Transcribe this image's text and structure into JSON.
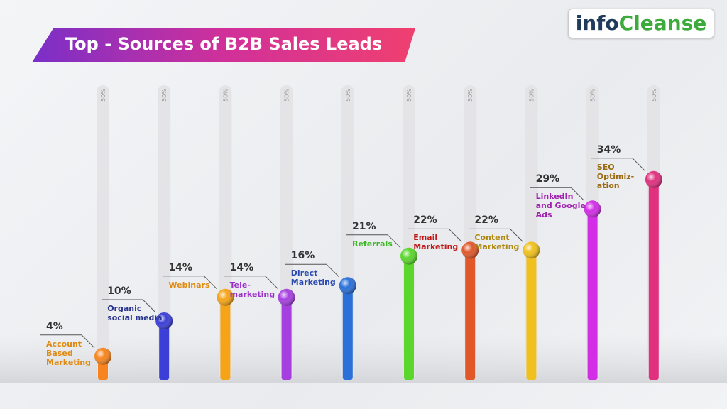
{
  "logo": [
    "info",
    "Cleanse"
  ],
  "chart_data": {
    "type": "bar",
    "title": "Top - Sources of B2B Sales Leads",
    "categories": [
      "Account Based Marketing",
      "Organic social media",
      "Webinars",
      "Tele-marketing",
      "Direct Marketing",
      "Referrals",
      "Email Marketing",
      "Content Marketing",
      "LinkedIn and Google Ads",
      "SEO Optimiz-ation"
    ],
    "values": [
      4,
      10,
      14,
      14,
      16,
      21,
      22,
      22,
      29,
      34
    ],
    "value_labels": [
      "4%",
      "10%",
      "14%",
      "14%",
      "16%",
      "21%",
      "22%",
      "22%",
      "29%",
      "34%"
    ],
    "colors": [
      "#f7841e",
      "#3b3fd8",
      "#f5a418",
      "#a63fe0",
      "#2a70d8",
      "#5ad62c",
      "#e0582a",
      "#f0c01e",
      "#d22ee6",
      "#e0307e"
    ],
    "label_colors": [
      "#e08a10",
      "#2a3590",
      "#e08a10",
      "#9a30c8",
      "#2a4ab0",
      "#3bb820",
      "#c01a1a",
      "#b08a10",
      "#a020b0",
      "#9a6a10"
    ],
    "ylim": [
      0,
      50
    ],
    "yticks": [
      {
        "value": 50,
        "label": "50%"
      }
    ]
  }
}
